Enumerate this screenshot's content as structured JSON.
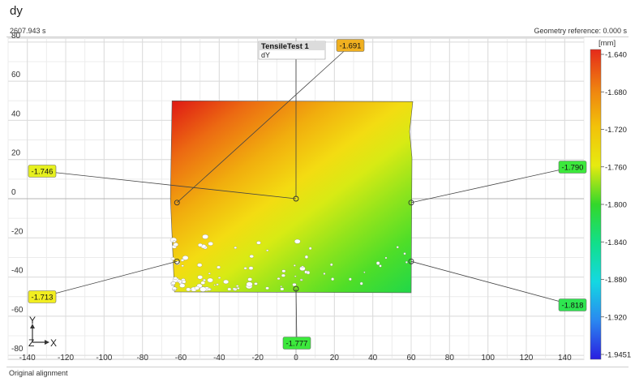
{
  "header": {
    "title": "dy",
    "time": "2607.943 s",
    "geometry_reference": "Geometry reference: 0.000 s"
  },
  "legend_box": {
    "title": "TensileTest 1",
    "subtitle": "dY"
  },
  "colorbar": {
    "unit": "[mm]",
    "ticks": [
      "-1.640",
      "-1.680",
      "-1.720",
      "-1.760",
      "-1.800",
      "-1.840",
      "-1.880",
      "-1.920",
      "-1.9451"
    ],
    "colors": [
      "#e52a1a",
      "#ef8010",
      "#f2c20a",
      "#e6ea10",
      "#33d82a",
      "#12df8a",
      "#14d8e2",
      "#2a88f0",
      "#2a1ee0"
    ]
  },
  "axes_labels": {
    "y": "Y",
    "z": "Z",
    "x": "X"
  },
  "status": {
    "text": "Original alignment"
  },
  "chart_data": {
    "type": "heatmap",
    "x_ticks": [
      -140,
      -120,
      -100,
      -80,
      -60,
      -40,
      -20,
      0,
      20,
      40,
      60,
      80,
      100,
      120,
      140
    ],
    "y_ticks": [
      80,
      60,
      40,
      20,
      0,
      -20,
      -40,
      -60,
      -80
    ],
    "xlim": [
      -150,
      150
    ],
    "ylim": [
      -82,
      82
    ],
    "grid": true,
    "specimen": {
      "x_range": [
        -65,
        60
      ],
      "y_range": [
        -48,
        50
      ]
    },
    "probes": [
      {
        "label": "-1.746",
        "x": 0,
        "y": 0,
        "color": "#e6f01e"
      },
      {
        "label": "-1.691",
        "x": -62,
        "y": -2,
        "color": "#f0b020"
      },
      {
        "label": "-1.790",
        "x": 60,
        "y": -2,
        "color": "#3ce83c"
      },
      {
        "label": "-1.713",
        "x": -62,
        "y": -32,
        "color": "#f2ee20"
      },
      {
        "label": "-1.818",
        "x": 60,
        "y": -32,
        "color": "#2ee650"
      },
      {
        "label": "-1.777",
        "x": 0,
        "y": -46,
        "color": "#3ce83c"
      }
    ]
  }
}
